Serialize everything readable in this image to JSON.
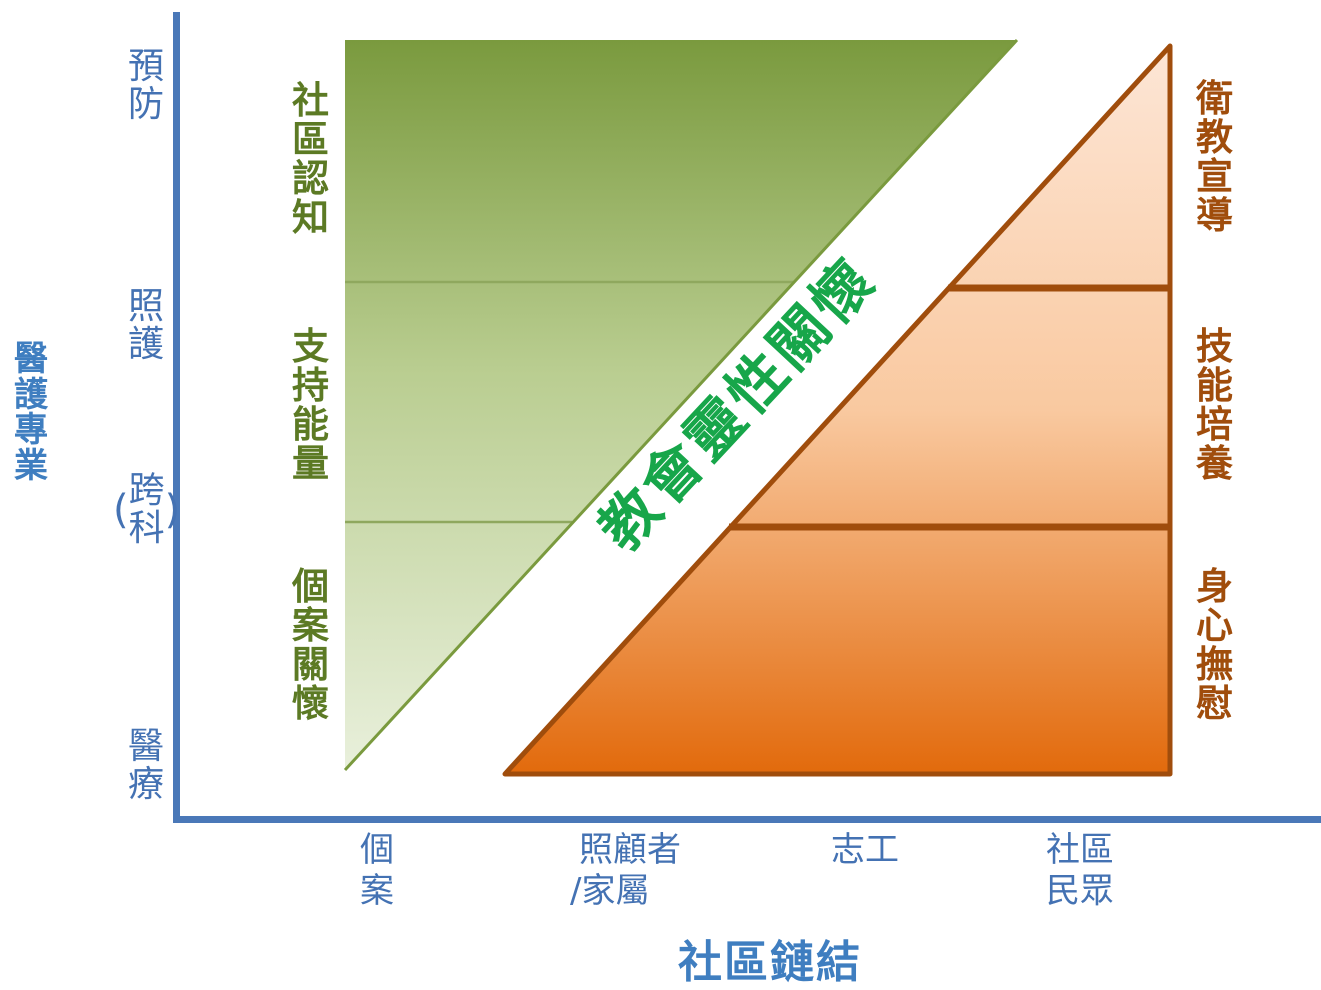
{
  "axes": {
    "y_label": [
      "醫",
      "護",
      "專",
      "業"
    ],
    "x_label": "社區鏈結",
    "y_ticks": {
      "prevention": [
        "預",
        "防"
      ],
      "care": [
        "照",
        "護"
      ],
      "cross_discipline": [
        "(",
        "跨",
        "科",
        ")"
      ],
      "medical": [
        "醫",
        "療"
      ]
    },
    "x_ticks": {
      "individual": [
        "個",
        "案"
      ],
      "caregiver": [
        "照顧者",
        "/家屬"
      ],
      "volunteer": "志工",
      "community": [
        "社區",
        "民眾"
      ]
    }
  },
  "green_triangle": {
    "layers": [
      {
        "label": [
          "社",
          "區",
          "認",
          "知"
        ]
      },
      {
        "label": [
          "支",
          "持",
          "能",
          "量"
        ]
      },
      {
        "label": [
          "個",
          "案",
          "關",
          "懷"
        ]
      }
    ]
  },
  "orange_triangle": {
    "layers": [
      {
        "label": [
          "衛",
          "教",
          "宣",
          "導"
        ]
      },
      {
        "label": [
          "技",
          "能",
          "培",
          "養"
        ]
      },
      {
        "label": [
          "身",
          "心",
          "撫",
          "慰"
        ]
      }
    ]
  },
  "diagonal_label": "教會靈性關懷",
  "colors": {
    "axis": "#4a78b8",
    "green_dark": "#7a9a3e",
    "green_light": "#e9f0dc",
    "orange_dark": "#e26a0c",
    "orange_light": "#fde6d6",
    "orange_border": "#a04d0c",
    "diagonal_text": "#17a64a"
  }
}
